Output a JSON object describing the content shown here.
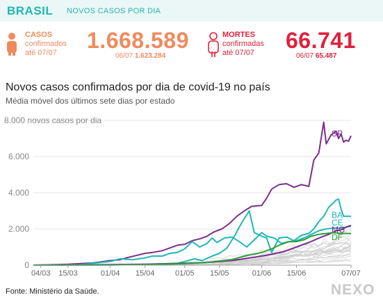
{
  "header": {
    "brand": "BRASIL",
    "subtitle": "NOVOS CASOS POR DIA"
  },
  "cases": {
    "label_lines": [
      "CASOS",
      "confirmados",
      "até 07/07"
    ],
    "total": "1.668.589",
    "prev_date": "06/07",
    "prev_total": "1.623.284",
    "icon": "person-icon",
    "color": "#f08a5d"
  },
  "deaths": {
    "label_lines": [
      "MORTES",
      "confirmadas",
      "até 07/07"
    ],
    "total": "66.741",
    "prev_date": "06/07",
    "prev_total": "65.487",
    "icon": "person-outline-icon",
    "color": "#e0203a"
  },
  "chart_title": "Novos casos confirmados por dia de covid-19 no país",
  "chart_subtitle": "Média móvel dos últimos sete dias por estado",
  "source": "Fonte: Ministério da Saúde.",
  "logo": "NEXO",
  "chart_data": {
    "type": "line",
    "ylabel_top": "8.000 novos casos por dia",
    "ylim": [
      0,
      8000
    ],
    "yticks": [
      "0",
      "2.000",
      "4.000",
      "6.000"
    ],
    "xticks": [
      "04/03",
      "15/03",
      "01/04",
      "15/04",
      "01/05",
      "15/05",
      "01/06",
      "15/06",
      "07/07"
    ],
    "xrange": [
      "2020-03-01",
      "2020-07-07"
    ],
    "grid": true,
    "background_series_color": "#cfcfcf",
    "series": [
      {
        "name": "SP",
        "color": "#7b2d8e",
        "points": [
          [
            "2020-03-01",
            0
          ],
          [
            "2020-03-15",
            50
          ],
          [
            "2020-03-25",
            120
          ],
          [
            "2020-04-01",
            250
          ],
          [
            "2020-04-05",
            300
          ],
          [
            "2020-04-08",
            420
          ],
          [
            "2020-04-12",
            550
          ],
          [
            "2020-04-15",
            650
          ],
          [
            "2020-04-18",
            700
          ],
          [
            "2020-04-22",
            800
          ],
          [
            "2020-04-25",
            950
          ],
          [
            "2020-04-28",
            1100
          ],
          [
            "2020-05-01",
            1150
          ],
          [
            "2020-05-04",
            1350
          ],
          [
            "2020-05-07",
            1450
          ],
          [
            "2020-05-10",
            1600
          ],
          [
            "2020-05-13",
            1850
          ],
          [
            "2020-05-16",
            2000
          ],
          [
            "2020-05-19",
            2300
          ],
          [
            "2020-05-22",
            2700
          ],
          [
            "2020-05-25",
            3000
          ],
          [
            "2020-05-28",
            3250
          ],
          [
            "2020-06-01",
            3300
          ],
          [
            "2020-06-03",
            3700
          ],
          [
            "2020-06-05",
            4200
          ],
          [
            "2020-06-08",
            4450
          ],
          [
            "2020-06-11",
            4500
          ],
          [
            "2020-06-14",
            4300
          ],
          [
            "2020-06-17",
            4450
          ],
          [
            "2020-06-20",
            4350
          ],
          [
            "2020-06-22",
            5800
          ],
          [
            "2020-06-24",
            6200
          ],
          [
            "2020-06-26",
            7900
          ],
          [
            "2020-06-27",
            6700
          ],
          [
            "2020-06-29",
            7200
          ],
          [
            "2020-07-01",
            7400
          ],
          [
            "2020-07-02",
            7000
          ],
          [
            "2020-07-03",
            7250
          ],
          [
            "2020-07-04",
            6800
          ],
          [
            "2020-07-05",
            6900
          ],
          [
            "2020-07-06",
            6850
          ],
          [
            "2020-07-07",
            7150
          ]
        ]
      },
      {
        "name": "BA",
        "color": "#1fb8b4",
        "points": [
          [
            "2020-03-01",
            0
          ],
          [
            "2020-04-01",
            0
          ],
          [
            "2020-04-15",
            50
          ],
          [
            "2020-04-28",
            100
          ],
          [
            "2020-05-01",
            200
          ],
          [
            "2020-05-05",
            350
          ],
          [
            "2020-05-08",
            250
          ],
          [
            "2020-05-12",
            500
          ],
          [
            "2020-05-15",
            650
          ],
          [
            "2020-05-18",
            950
          ],
          [
            "2020-05-21",
            1600
          ],
          [
            "2020-05-24",
            2350
          ],
          [
            "2020-05-27",
            3000
          ],
          [
            "2020-05-29",
            1800
          ],
          [
            "2020-06-01",
            1600
          ],
          [
            "2020-06-03",
            1500
          ],
          [
            "2020-06-05",
            700
          ],
          [
            "2020-06-08",
            1500
          ],
          [
            "2020-06-11",
            1550
          ],
          [
            "2020-06-14",
            1350
          ],
          [
            "2020-06-17",
            1650
          ],
          [
            "2020-06-20",
            1750
          ],
          [
            "2020-06-22",
            2000
          ],
          [
            "2020-06-24",
            2400
          ],
          [
            "2020-06-26",
            2700
          ],
          [
            "2020-06-28",
            3200
          ],
          [
            "2020-06-30",
            3450
          ],
          [
            "2020-07-01",
            3600
          ],
          [
            "2020-07-02",
            3650
          ],
          [
            "2020-07-03",
            3100
          ],
          [
            "2020-07-04",
            2700
          ],
          [
            "2020-07-07",
            2700
          ]
        ]
      },
      {
        "name": "CE",
        "color": "#1fb8b4",
        "points": [
          [
            "2020-03-01",
            0
          ],
          [
            "2020-03-20",
            30
          ],
          [
            "2020-04-01",
            200
          ],
          [
            "2020-04-05",
            350
          ],
          [
            "2020-04-10",
            300
          ],
          [
            "2020-04-15",
            400
          ],
          [
            "2020-04-18",
            500
          ],
          [
            "2020-04-22",
            500
          ],
          [
            "2020-04-25",
            650
          ],
          [
            "2020-04-28",
            700
          ],
          [
            "2020-05-01",
            900
          ],
          [
            "2020-05-04",
            1300
          ],
          [
            "2020-05-07",
            1000
          ],
          [
            "2020-05-10",
            1200
          ],
          [
            "2020-05-12",
            1500
          ],
          [
            "2020-05-14",
            1250
          ],
          [
            "2020-05-17",
            1500
          ],
          [
            "2020-05-20",
            1550
          ],
          [
            "2020-05-23",
            1300
          ],
          [
            "2020-05-26",
            1000
          ],
          [
            "2020-05-29",
            1400
          ],
          [
            "2020-06-01",
            1800
          ],
          [
            "2020-06-03",
            1600
          ],
          [
            "2020-06-06",
            1500
          ],
          [
            "2020-06-09",
            1200
          ],
          [
            "2020-06-12",
            1300
          ],
          [
            "2020-06-15",
            1350
          ],
          [
            "2020-06-18",
            1500
          ],
          [
            "2020-06-21",
            1700
          ],
          [
            "2020-06-24",
            1900
          ],
          [
            "2020-06-27",
            2000
          ],
          [
            "2020-06-30",
            2050
          ],
          [
            "2020-07-03",
            2050
          ],
          [
            "2020-07-07",
            2150
          ]
        ]
      },
      {
        "name": "MG",
        "color": "#7b2d8e",
        "points": [
          [
            "2020-03-01",
            0
          ],
          [
            "2020-04-15",
            50
          ],
          [
            "2020-05-01",
            100
          ],
          [
            "2020-05-10",
            150
          ],
          [
            "2020-05-20",
            250
          ],
          [
            "2020-05-25",
            350
          ],
          [
            "2020-06-01",
            500
          ],
          [
            "2020-06-05",
            600
          ],
          [
            "2020-06-10",
            750
          ],
          [
            "2020-06-15",
            1000
          ],
          [
            "2020-06-20",
            1250
          ],
          [
            "2020-06-25",
            1550
          ],
          [
            "2020-06-28",
            1700
          ],
          [
            "2020-07-01",
            1900
          ],
          [
            "2020-07-03",
            1950
          ],
          [
            "2020-07-05",
            2100
          ],
          [
            "2020-07-07",
            2200
          ]
        ]
      },
      {
        "name": "DF",
        "color": "#2e9c3a",
        "points": [
          [
            "2020-03-01",
            0
          ],
          [
            "2020-04-15",
            30
          ],
          [
            "2020-05-01",
            80
          ],
          [
            "2020-05-10",
            150
          ],
          [
            "2020-05-20",
            300
          ],
          [
            "2020-05-25",
            500
          ],
          [
            "2020-06-01",
            700
          ],
          [
            "2020-06-05",
            900
          ],
          [
            "2020-06-08",
            1100
          ],
          [
            "2020-06-12",
            1300
          ],
          [
            "2020-06-15",
            1300
          ],
          [
            "2020-06-18",
            1400
          ],
          [
            "2020-06-21",
            1600
          ],
          [
            "2020-06-24",
            1700
          ],
          [
            "2020-06-27",
            1750
          ],
          [
            "2020-06-30",
            1800
          ],
          [
            "2020-07-03",
            1750
          ],
          [
            "2020-07-07",
            1750
          ]
        ]
      }
    ]
  }
}
